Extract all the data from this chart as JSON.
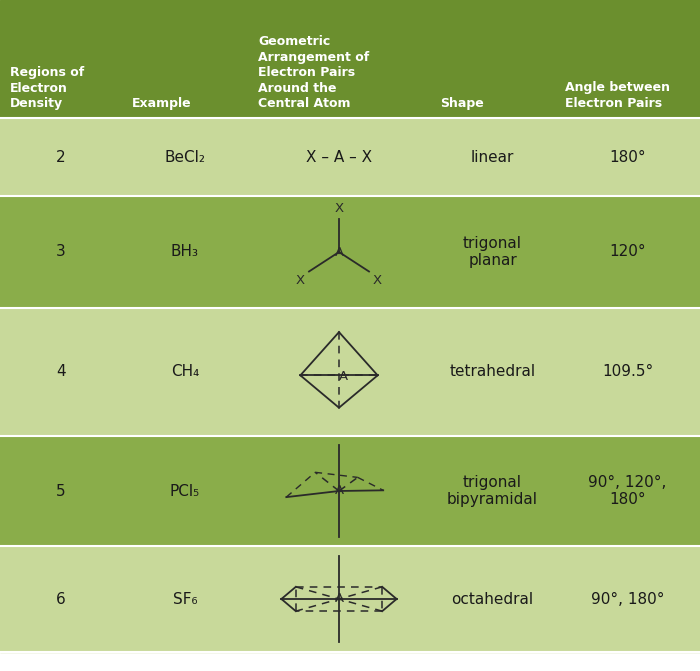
{
  "header_bg": "#6b8f2e",
  "dark_green": "#8aad4a",
  "light_green": "#c8d99a",
  "header_text_color": "#ffffff",
  "body_text_color": "#1a1a1a",
  "headers": [
    "Regions of\nElectron\nDensity",
    "Example",
    "Geometric\nArrangement of\nElectron Pairs\nAround the\nCentral Atom",
    "Shape",
    "Angle between\nElectron Pairs"
  ],
  "rows": [
    {
      "n": "2",
      "example": "BeCl₂",
      "shape": "linear",
      "angle": "180°"
    },
    {
      "n": "3",
      "example": "BH₃",
      "shape": "trigonal\nplanar",
      "angle": "120°"
    },
    {
      "n": "4",
      "example": "CH₄",
      "shape": "tetrahedral",
      "angle": "109.5°"
    },
    {
      "n": "5",
      "example": "PCl₅",
      "shape": "trigonal\nbipyramidal",
      "angle": "90°, 120°,\n180°"
    },
    {
      "n": "6",
      "example": "SF₆",
      "shape": "octahedral",
      "angle": "90°, 180°"
    }
  ]
}
